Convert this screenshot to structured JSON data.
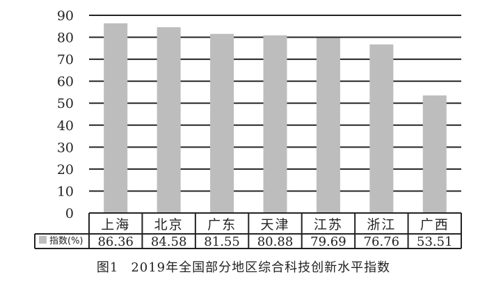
{
  "chart_data": {
    "type": "bar",
    "categories": [
      "上海",
      "北京",
      "广东",
      "天津",
      "江苏",
      "浙江",
      "广西"
    ],
    "series": [
      {
        "name": "指数(%)",
        "values": [
          86.36,
          84.58,
          81.55,
          80.88,
          79.69,
          76.76,
          53.51
        ]
      }
    ],
    "value_labels": [
      "86.36",
      "84.58",
      "81.55",
      "80.88",
      "79.69",
      "76.76",
      "53.51"
    ],
    "yticks": [
      "0",
      "10",
      "20",
      "30",
      "40",
      "50",
      "60",
      "70",
      "80",
      "90"
    ],
    "ylim": [
      0,
      90
    ],
    "grid": true,
    "legend_placement": "data-table-left",
    "bar_color": "#bdbdbd",
    "grid_color": "#222222"
  },
  "caption": {
    "figure_label": "图1",
    "text": "2019年全国部分地区综合科技创新水平指数"
  }
}
